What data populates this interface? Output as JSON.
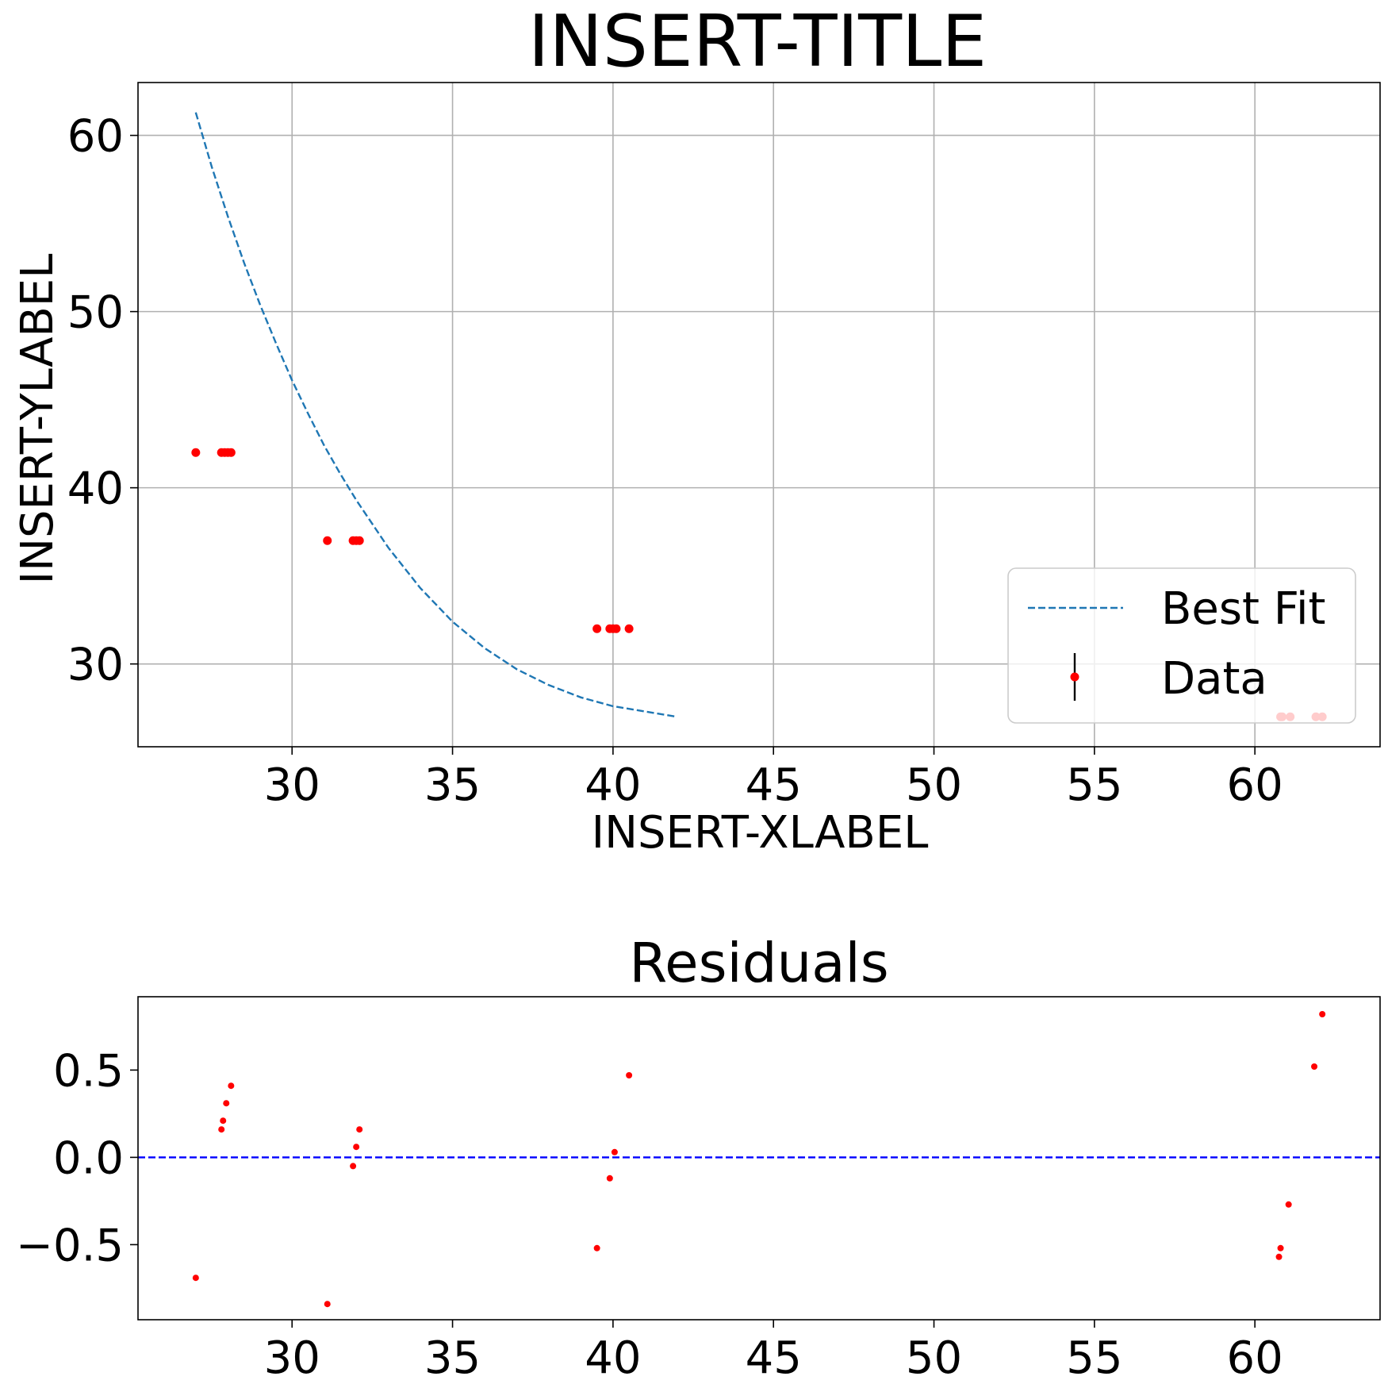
{
  "chart_data": [
    {
      "type": "scatter",
      "title": "INSERT-TITLE",
      "xlabel": "INSERT-XLABEL",
      "ylabel": "INSERT-YLABEL",
      "xlim": [
        25.2,
        63.9
      ],
      "ylim": [
        25.3,
        63.0
      ],
      "xticks": [
        30,
        35,
        40,
        45,
        50,
        55,
        60
      ],
      "yticks": [
        30,
        40,
        50,
        60
      ],
      "grid": true,
      "legend_position": "lower right",
      "series": [
        {
          "name": "Best Fit",
          "kind": "line",
          "style": "dashed",
          "color": "#1f77b4",
          "x": [
            27.0,
            27.5,
            28.0,
            28.5,
            29.0,
            29.5,
            30.0,
            30.5,
            31.0,
            31.5,
            32.0,
            33.0,
            34.0,
            35.0,
            36.0,
            37.0,
            38.0,
            39.0,
            40.0,
            41.0,
            42.0
          ],
          "y": [
            61.3,
            58.2,
            55.4,
            52.8,
            50.4,
            48.2,
            46.1,
            44.2,
            42.4,
            40.8,
            39.3,
            36.6,
            34.3,
            32.4,
            30.9,
            29.7,
            28.8,
            28.1,
            27.6,
            27.3,
            27.0
          ]
        },
        {
          "name": "Data",
          "kind": "points",
          "color": "#ff0000",
          "x": [
            27.0,
            27.8,
            27.9,
            28.0,
            28.1,
            31.1,
            31.9,
            32.0,
            32.1,
            39.5,
            39.9,
            40.0,
            40.1,
            40.5,
            60.8,
            60.85,
            61.1,
            61.9,
            62.1
          ],
          "y": [
            42,
            42,
            42,
            42,
            42,
            37,
            37,
            37,
            37,
            32,
            32,
            32,
            32,
            32,
            27,
            27,
            27,
            27,
            27
          ]
        }
      ]
    },
    {
      "type": "scatter",
      "title": "Residuals",
      "xlim": [
        25.2,
        63.9
      ],
      "ylim": [
        -0.93,
        0.92
      ],
      "xticks": [
        30,
        35,
        40,
        45,
        50,
        55,
        60
      ],
      "yticks": [
        -0.5,
        0.0,
        0.5
      ],
      "ytick_labels": [
        "−0.5",
        "0.0",
        "0.5"
      ],
      "grid": false,
      "reference_line": {
        "y": 0,
        "color": "#0000ff",
        "style": "dashed"
      },
      "series": [
        {
          "name": "",
          "color": "#ff0000",
          "x": [
            27.0,
            27.8,
            27.85,
            27.95,
            28.1,
            31.1,
            31.9,
            32.0,
            32.1,
            39.5,
            39.9,
            40.05,
            40.5,
            60.75,
            60.8,
            61.05,
            61.85,
            62.1
          ],
          "y": [
            -0.69,
            0.16,
            0.21,
            0.31,
            0.41,
            -0.84,
            -0.05,
            0.06,
            0.16,
            -0.52,
            -0.12,
            0.03,
            0.47,
            -0.57,
            -0.52,
            -0.27,
            0.52,
            0.82
          ]
        }
      ]
    }
  ]
}
